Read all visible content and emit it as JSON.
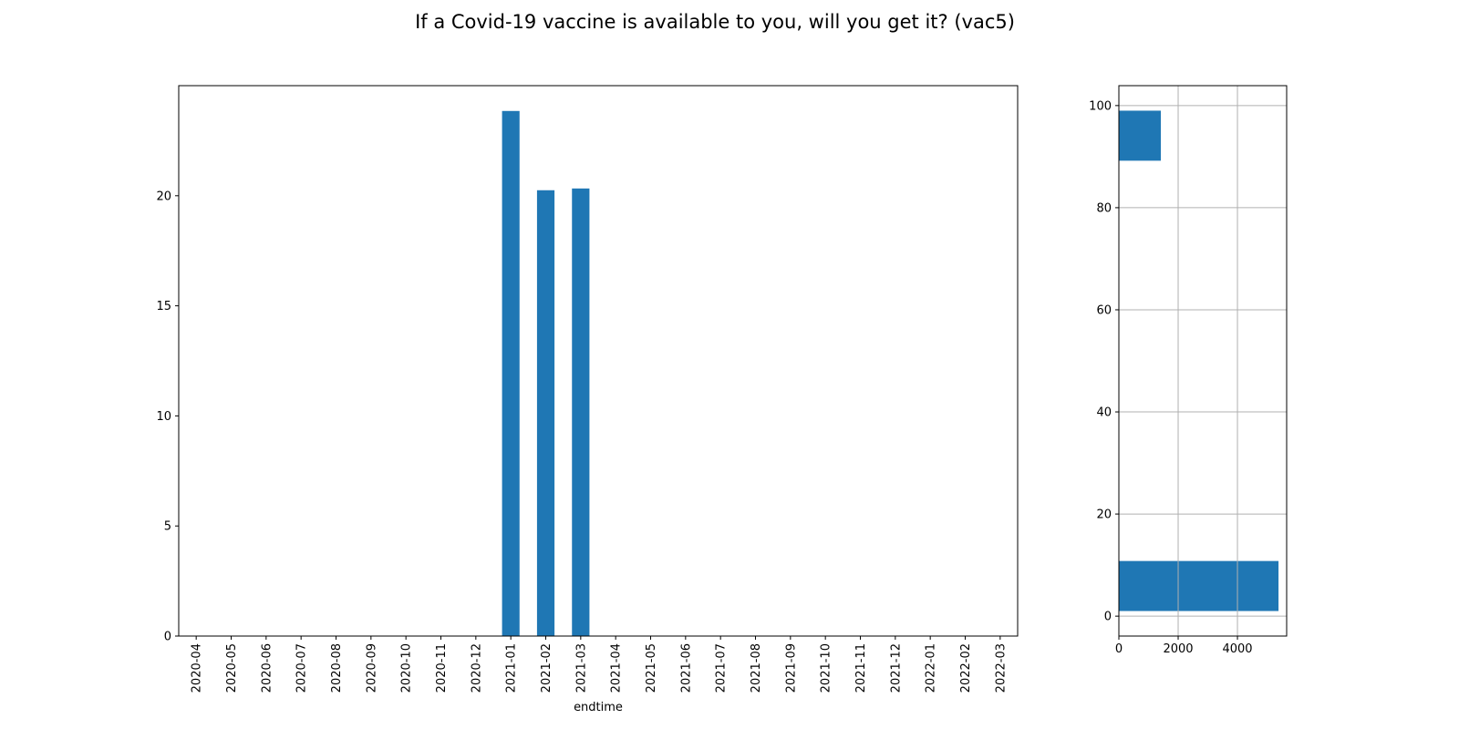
{
  "title": "If a Covid-19 vaccine is available to you, will you get it? (vac5)",
  "chart_data": [
    {
      "type": "bar",
      "xlabel": "endtime",
      "categories": [
        "2020-04",
        "2020-05",
        "2020-06",
        "2020-07",
        "2020-08",
        "2020-09",
        "2020-10",
        "2020-11",
        "2020-12",
        "2021-01",
        "2021-02",
        "2021-03",
        "2021-04",
        "2021-05",
        "2021-06",
        "2021-07",
        "2021-08",
        "2021-09",
        "2021-10",
        "2021-11",
        "2021-12",
        "2022-01",
        "2022-02",
        "2022-03"
      ],
      "values": [
        0,
        0,
        0,
        0,
        0,
        0,
        0,
        0,
        0,
        23.85,
        20.25,
        20.33,
        0,
        0,
        0,
        0,
        0,
        0,
        0,
        0,
        0,
        0,
        0,
        0
      ],
      "color": "#1f77b4",
      "ylim": [
        0,
        25
      ],
      "yticks": [
        0,
        5,
        10,
        15,
        20
      ],
      "grid": false
    },
    {
      "type": "histogram",
      "orientation": "horizontal",
      "bins": [
        1,
        10.8,
        20.6,
        30.4,
        40.2,
        50,
        59.8,
        69.6,
        79.4,
        89.2,
        99
      ],
      "counts": [
        5385,
        0,
        0,
        0,
        0,
        0,
        0,
        0,
        0,
        1415
      ],
      "color": "#1f77b4",
      "xlim": [
        0,
        5660
      ],
      "xticks": [
        0,
        2000,
        4000
      ],
      "ylim": [
        -3.9,
        103.9
      ],
      "yticks": [
        0,
        20,
        40,
        60,
        80,
        100
      ],
      "grid": true
    }
  ]
}
